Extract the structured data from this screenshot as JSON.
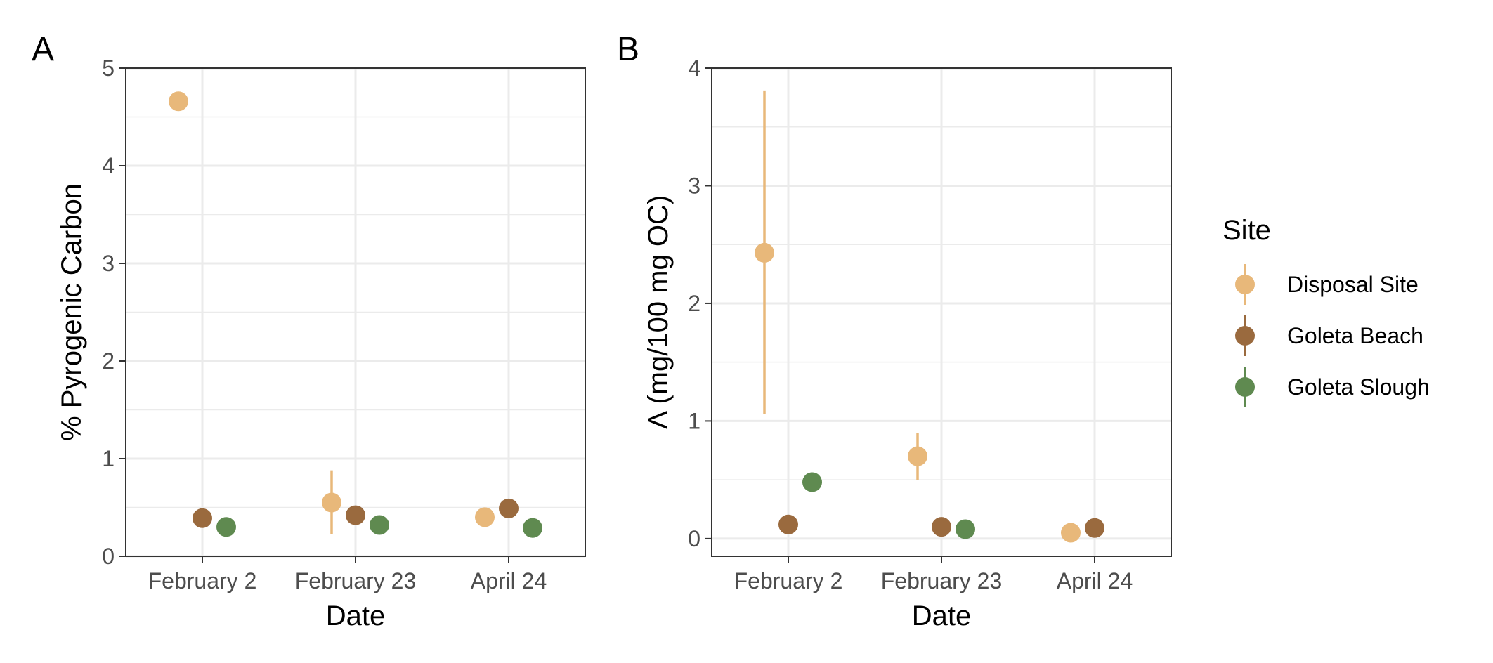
{
  "legend": {
    "title": "Site",
    "entries": [
      {
        "name": "Disposal Site",
        "color": "#E8B87A"
      },
      {
        "name": "Goleta Beach",
        "color": "#9A6A3E"
      },
      {
        "name": "Goleta Slough",
        "color": "#5F8A50"
      }
    ]
  },
  "chart_data": [
    {
      "type": "scatter",
      "panel": "A",
      "xlabel": "Date",
      "ylabel": "% Pyrogenic Carbon",
      "categories": [
        "February 2",
        "February 23",
        "April 24"
      ],
      "ylim": [
        0,
        5
      ],
      "yticks": [
        0,
        1,
        2,
        3,
        4,
        5
      ],
      "grid": true,
      "series": [
        {
          "name": "Disposal Site",
          "values": [
            4.66,
            0.55,
            0.4
          ],
          "err_low": [
            4.6,
            0.23,
            0.4
          ],
          "err_high": [
            4.74,
            0.88,
            0.4
          ]
        },
        {
          "name": "Goleta Beach",
          "values": [
            0.39,
            0.42,
            0.49
          ],
          "err_low": [
            0.39,
            0.42,
            0.49
          ],
          "err_high": [
            0.39,
            0.42,
            0.49
          ]
        },
        {
          "name": "Goleta Slough",
          "values": [
            0.3,
            0.32,
            0.29
          ],
          "err_low": [
            0.3,
            0.32,
            0.29
          ],
          "err_high": [
            0.3,
            0.32,
            0.29
          ]
        }
      ]
    },
    {
      "type": "scatter",
      "panel": "B",
      "xlabel": "Date",
      "ylabel": "Λ (mg/100 mg OC)",
      "categories": [
        "February 2",
        "February 23",
        "April 24"
      ],
      "ylim": [
        -0.15,
        4
      ],
      "yticks": [
        0,
        1,
        2,
        3,
        4
      ],
      "grid": true,
      "series": [
        {
          "name": "Disposal Site",
          "values": [
            2.43,
            0.7,
            0.05
          ],
          "err_low": [
            1.06,
            0.5,
            0.05
          ],
          "err_high": [
            3.81,
            0.9,
            0.05
          ]
        },
        {
          "name": "Goleta Beach",
          "values": [
            0.12,
            0.1,
            0.09
          ],
          "err_low": [
            0.12,
            0.1,
            0.09
          ],
          "err_high": [
            0.12,
            0.1,
            0.09
          ]
        },
        {
          "name": "Goleta Slough",
          "values": [
            0.48,
            0.08,
            null
          ],
          "err_low": [
            0.48,
            0.08,
            null
          ],
          "err_high": [
            0.48,
            0.08,
            null
          ]
        }
      ]
    }
  ]
}
